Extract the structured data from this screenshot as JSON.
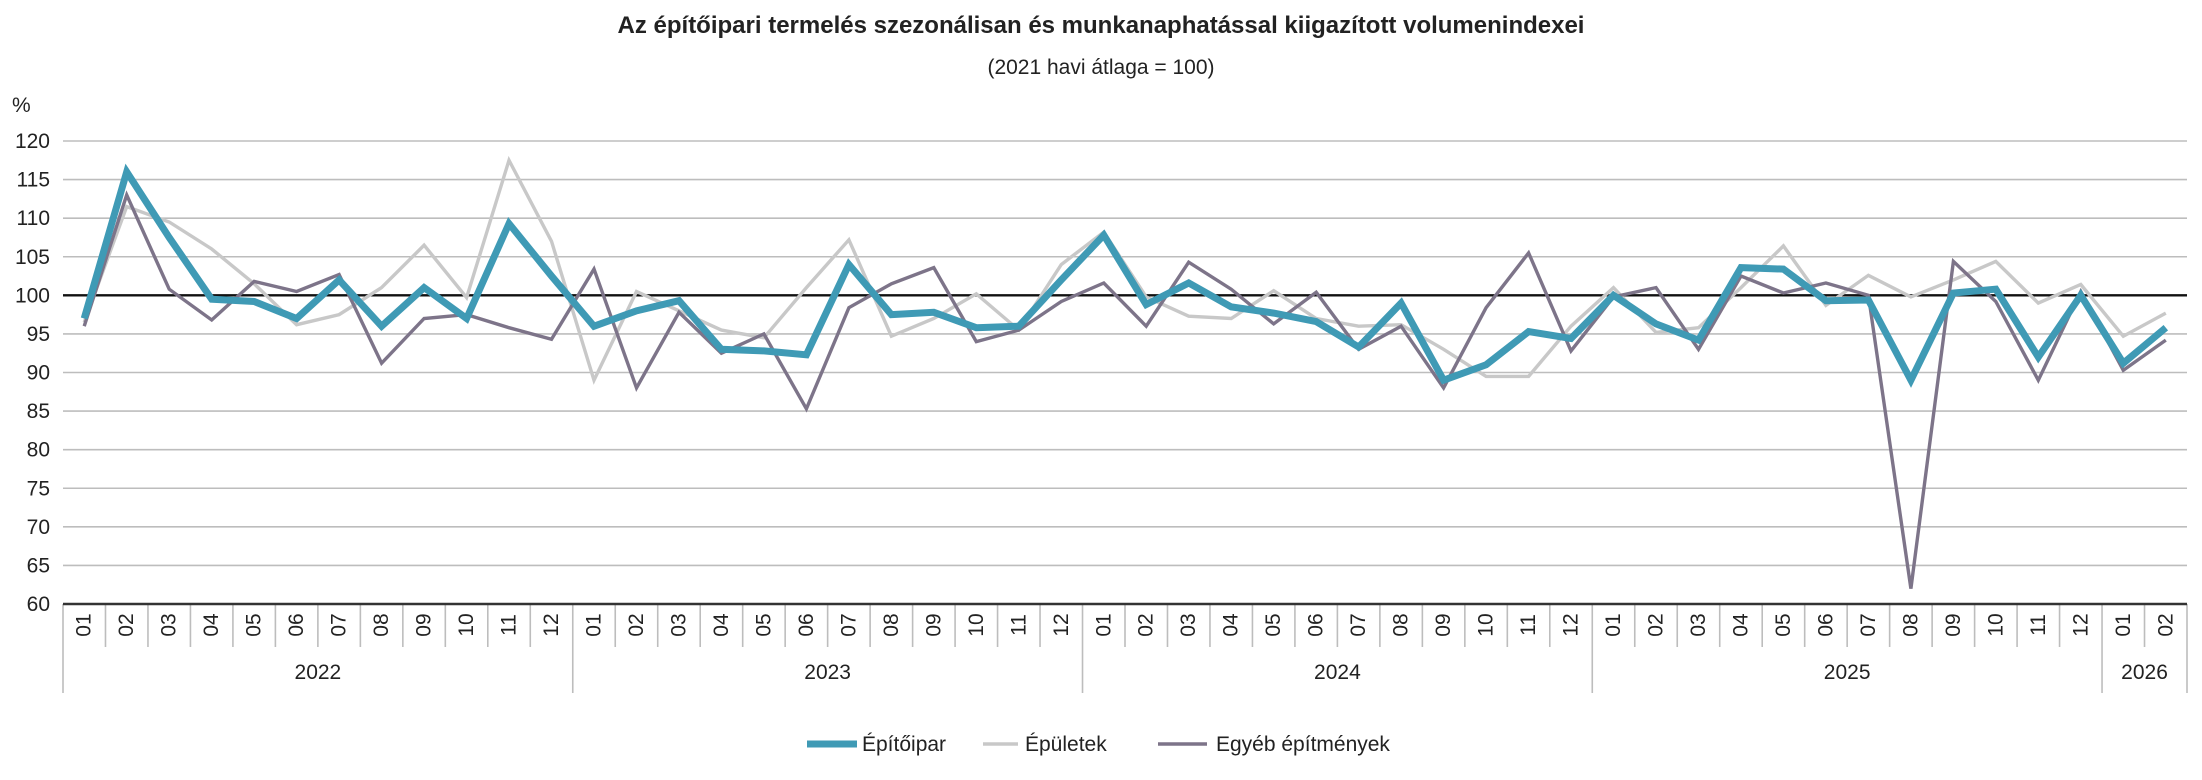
{
  "chart_data": {
    "type": "line",
    "title": "Az építőipari termelés szezonálisan és munkanaphatással kiigazított volumenindexei",
    "subtitle": "(2021 havi átlaga = 100)",
    "ylabel": "%",
    "ylim": [
      60,
      120
    ],
    "yticks": [
      60,
      65,
      70,
      75,
      80,
      85,
      90,
      95,
      100,
      105,
      110,
      115,
      120
    ],
    "reference_line": 100,
    "grid": true,
    "legend_position": "bottom",
    "years": [
      {
        "label": "2022",
        "months": [
          "01",
          "02",
          "03",
          "04",
          "05",
          "06",
          "07",
          "08",
          "09",
          "10",
          "11",
          "12"
        ]
      },
      {
        "label": "2023",
        "months": [
          "01",
          "02",
          "03",
          "04",
          "05",
          "06",
          "07",
          "08",
          "09",
          "10",
          "11",
          "12"
        ]
      },
      {
        "label": "2024",
        "months": [
          "01",
          "02",
          "03",
          "04",
          "05",
          "06",
          "07",
          "08",
          "09",
          "10",
          "11",
          "12"
        ]
      },
      {
        "label": "2025",
        "months": [
          "01",
          "02",
          "03",
          "04",
          "05",
          "06",
          "07",
          "08",
          "09",
          "10",
          "11",
          "12"
        ]
      },
      {
        "label": "2026",
        "months": [
          "01",
          "02"
        ]
      }
    ],
    "series": [
      {
        "name": "Épületek",
        "color": "#c8c8c8",
        "values": [
          96.5,
          111.5,
          109.5,
          106,
          101.5,
          96.2,
          97.5,
          101,
          106.5,
          99.7,
          117.5,
          107,
          89,
          100.5,
          98,
          95.5,
          94.5,
          101,
          107.2,
          94.7,
          97,
          100.2,
          95.5,
          104,
          108.2,
          99.8,
          97.3,
          97,
          100.6,
          97,
          96,
          96.2,
          93,
          89.5,
          89.5,
          96,
          101,
          95.2,
          95.8,
          101,
          106.4,
          98.7,
          102.6,
          99.8,
          102,
          104.4,
          99,
          101.4,
          94.7,
          97.7
        ]
      },
      {
        "name": "Egyéb építmények",
        "color": "#7d7489",
        "values": [
          96,
          113,
          100.8,
          96.8,
          101.8,
          100.5,
          102.7,
          91.2,
          97,
          97.5,
          95.8,
          94.3,
          103.4,
          88,
          97.8,
          92.5,
          95,
          85.3,
          98.4,
          101.5,
          103.6,
          94,
          95.5,
          99.2,
          101.6,
          96,
          104.3,
          100.8,
          96.3,
          100.4,
          93,
          96,
          88,
          98.4,
          105.5,
          92.8,
          99.8,
          101,
          93,
          102.5,
          100.3,
          101.6,
          100,
          62,
          104.4,
          99.2,
          89,
          100.5,
          90.3,
          94.2
        ]
      },
      {
        "name": "Építőipar",
        "color": "#3f9ab5",
        "values": [
          97,
          116,
          107.5,
          99.5,
          99.2,
          97,
          102,
          96,
          101,
          97,
          109.3,
          102.5,
          96,
          98,
          99.3,
          93,
          92.8,
          92.3,
          104,
          97.5,
          97.8,
          95.8,
          96,
          102,
          107.8,
          98.8,
          101.6,
          98.5,
          97.7,
          96.6,
          93.3,
          99,
          89,
          91,
          95.3,
          94.4,
          100,
          96.3,
          94.2,
          103.6,
          103.4,
          99.3,
          99.4,
          89,
          100.3,
          100.8,
          92,
          100,
          91.2,
          95.8
        ]
      }
    ],
    "legend": [
      {
        "name": "Építőipar",
        "color": "#3f9ab5"
      },
      {
        "name": "Épületek",
        "color": "#c8c8c8"
      },
      {
        "name": "Egyéb építmények",
        "color": "#7d7489"
      }
    ]
  }
}
